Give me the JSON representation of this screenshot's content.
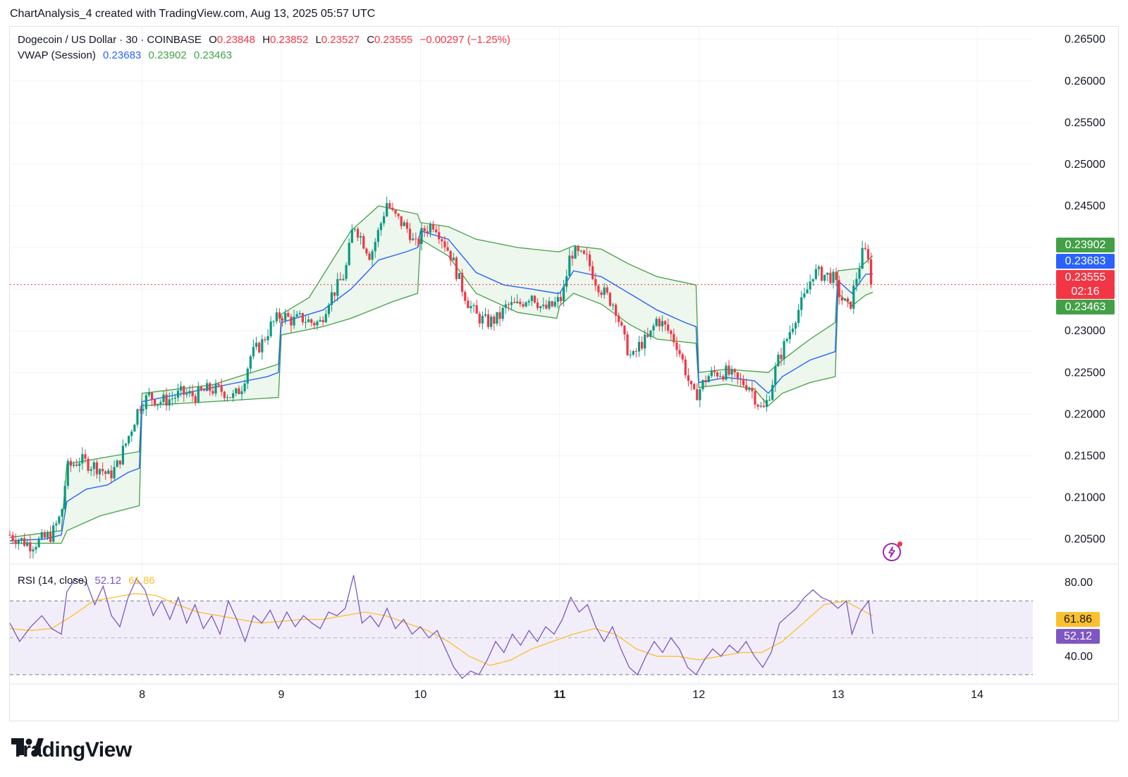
{
  "header": {
    "attribution": "ChartAnalysis_4 created with TradingView.com, Aug 13, 2025 05:57 UTC"
  },
  "legend": {
    "symbol": "Dogecoin / US Dollar · 30 · COINBASE",
    "o_label": "O",
    "o_value": "0.23848",
    "h_label": "H",
    "h_value": "0.23852",
    "l_label": "L",
    "l_value": "0.23527",
    "c_label": "C",
    "c_value": "0.23555",
    "change": "−0.00297 (−1.25%)",
    "vwap_label": "VWAP (Session)",
    "vwap_value": "0.23683",
    "vwap_upper": "0.23902",
    "vwap_lower": "0.23463"
  },
  "rsi_legend": {
    "label": "RSI (14, close)",
    "rsi_value": "52.12",
    "ma_value": "61.86"
  },
  "price_tags": {
    "upper": "0.23902",
    "vwap": "0.23683",
    "last": "0.23555",
    "countdown": "02:16",
    "lower": "0.23463"
  },
  "rsi_tags": {
    "ma": "61.86",
    "rsi": "52.12"
  },
  "branding": {
    "logo_text": "TradingView"
  },
  "colors": {
    "up": "#089981",
    "down": "#f23645",
    "vwap": "#2962ff",
    "band": "#43a047",
    "band_fill": "#e8f5e9",
    "rsi": "#7e57c2",
    "rsi_ma": "#fbc02d",
    "rsi_zone": "#ede7f6",
    "last_price": "#f23645"
  },
  "chart_data": {
    "type": "candlestick",
    "price_axis": {
      "ylim": [
        0.202,
        0.2665
      ],
      "ticks": [
        "0.26500",
        "0.26000",
        "0.25500",
        "0.25000",
        "0.24500",
        "0.24000",
        "0.23500",
        "0.23000",
        "0.22500",
        "0.22000",
        "0.21500",
        "0.21000",
        "0.20500"
      ],
      "tick_values": [
        0.265,
        0.26,
        0.255,
        0.25,
        0.245,
        0.24,
        0.235,
        0.23,
        0.225,
        0.22,
        0.215,
        0.21,
        0.205
      ]
    },
    "time_axis": {
      "xlim": [
        7.05,
        14.4
      ],
      "ticks": [
        "8",
        "9",
        "10",
        "11",
        "12",
        "13",
        "14"
      ],
      "tick_values": [
        8,
        9,
        10,
        11,
        12,
        13,
        14
      ],
      "bold_tick": "11"
    },
    "last_price": 0.23555,
    "price_path": [
      [
        7.05,
        0.2055
      ],
      [
        7.2,
        0.2043
      ],
      [
        7.35,
        0.2055
      ],
      [
        7.42,
        0.208
      ],
      [
        7.46,
        0.2135
      ],
      [
        7.55,
        0.2145
      ],
      [
        7.62,
        0.214
      ],
      [
        7.7,
        0.2135
      ],
      [
        7.76,
        0.2125
      ],
      [
        7.82,
        0.2138
      ],
      [
        7.9,
        0.2172
      ],
      [
        7.98,
        0.221
      ],
      [
        8.05,
        0.2222
      ],
      [
        8.12,
        0.2215
      ],
      [
        8.2,
        0.2218
      ],
      [
        8.28,
        0.2225
      ],
      [
        8.38,
        0.2222
      ],
      [
        8.48,
        0.223
      ],
      [
        8.58,
        0.2228
      ],
      [
        8.66,
        0.222
      ],
      [
        8.72,
        0.2235
      ],
      [
        8.78,
        0.227
      ],
      [
        8.86,
        0.2285
      ],
      [
        8.92,
        0.2305
      ],
      [
        9.0,
        0.232
      ],
      [
        9.08,
        0.2312
      ],
      [
        9.15,
        0.2315
      ],
      [
        9.22,
        0.231
      ],
      [
        9.28,
        0.231
      ],
      [
        9.34,
        0.2338
      ],
      [
        9.4,
        0.2352
      ],
      [
        9.46,
        0.237
      ],
      [
        9.52,
        0.243
      ],
      [
        9.58,
        0.241
      ],
      [
        9.64,
        0.239
      ],
      [
        9.7,
        0.242
      ],
      [
        9.76,
        0.2455
      ],
      [
        9.8,
        0.244
      ],
      [
        9.86,
        0.243
      ],
      [
        9.92,
        0.242
      ],
      [
        9.96,
        0.24
      ],
      [
        10.02,
        0.242
      ],
      [
        10.1,
        0.243
      ],
      [
        10.16,
        0.241
      ],
      [
        10.22,
        0.239
      ],
      [
        10.28,
        0.236
      ],
      [
        10.34,
        0.2335
      ],
      [
        10.4,
        0.2318
      ],
      [
        10.48,
        0.231
      ],
      [
        10.56,
        0.2315
      ],
      [
        10.62,
        0.233
      ],
      [
        10.7,
        0.233
      ],
      [
        10.8,
        0.2345
      ],
      [
        10.88,
        0.2325
      ],
      [
        10.95,
        0.233
      ],
      [
        11.02,
        0.234
      ],
      [
        11.08,
        0.2395
      ],
      [
        11.14,
        0.239
      ],
      [
        11.2,
        0.2385
      ],
      [
        11.26,
        0.236
      ],
      [
        11.32,
        0.2345
      ],
      [
        11.4,
        0.233
      ],
      [
        11.46,
        0.229
      ],
      [
        11.52,
        0.2265
      ],
      [
        11.58,
        0.2285
      ],
      [
        11.64,
        0.229
      ],
      [
        11.7,
        0.2315
      ],
      [
        11.78,
        0.23
      ],
      [
        11.84,
        0.2285
      ],
      [
        11.9,
        0.2255
      ],
      [
        11.96,
        0.222
      ],
      [
        12.0,
        0.2228
      ],
      [
        12.06,
        0.2245
      ],
      [
        12.12,
        0.225
      ],
      [
        12.2,
        0.225
      ],
      [
        12.28,
        0.224
      ],
      [
        12.36,
        0.2235
      ],
      [
        12.42,
        0.2215
      ],
      [
        12.46,
        0.2203
      ],
      [
        12.5,
        0.222
      ],
      [
        12.56,
        0.226
      ],
      [
        12.62,
        0.2285
      ],
      [
        12.7,
        0.232
      ],
      [
        12.76,
        0.234
      ],
      [
        12.82,
        0.237
      ],
      [
        12.88,
        0.2368
      ],
      [
        12.96,
        0.2365
      ],
      [
        13.02,
        0.234
      ],
      [
        13.08,
        0.2325
      ],
      [
        13.14,
        0.237
      ],
      [
        13.18,
        0.2395
      ],
      [
        13.22,
        0.2392
      ],
      [
        13.25,
        0.23555
      ]
    ],
    "vwap_path": [
      [
        7.05,
        0.2048
      ],
      [
        7.3,
        0.205
      ],
      [
        7.42,
        0.2055
      ],
      [
        7.46,
        0.2095
      ],
      [
        7.6,
        0.211
      ],
      [
        7.75,
        0.2115
      ],
      [
        7.9,
        0.213
      ],
      [
        7.98,
        0.2135
      ],
      [
        8.0,
        0.2215
      ],
      [
        8.3,
        0.2225
      ],
      [
        8.6,
        0.2235
      ],
      [
        8.9,
        0.2245
      ],
      [
        8.98,
        0.225
      ],
      [
        9.0,
        0.231
      ],
      [
        9.3,
        0.2325
      ],
      [
        9.5,
        0.235
      ],
      [
        9.7,
        0.2385
      ],
      [
        9.9,
        0.2395
      ],
      [
        9.98,
        0.24
      ],
      [
        10.0,
        0.242
      ],
      [
        10.2,
        0.241
      ],
      [
        10.4,
        0.237
      ],
      [
        10.6,
        0.2355
      ],
      [
        10.8,
        0.235
      ],
      [
        10.98,
        0.2345
      ],
      [
        11.0,
        0.2345
      ],
      [
        11.1,
        0.2372
      ],
      [
        11.3,
        0.2365
      ],
      [
        11.5,
        0.2345
      ],
      [
        11.7,
        0.2325
      ],
      [
        11.9,
        0.231
      ],
      [
        11.98,
        0.2305
      ],
      [
        12.0,
        0.2238
      ],
      [
        12.2,
        0.2244
      ],
      [
        12.4,
        0.224
      ],
      [
        12.5,
        0.2225
      ],
      [
        12.6,
        0.2245
      ],
      [
        12.8,
        0.2265
      ],
      [
        12.98,
        0.2275
      ],
      [
        13.0,
        0.236
      ],
      [
        13.1,
        0.2345
      ],
      [
        13.2,
        0.2368
      ],
      [
        13.25,
        0.23683
      ]
    ],
    "upper_band_path": [
      [
        7.05,
        0.2052
      ],
      [
        7.42,
        0.206
      ],
      [
        7.46,
        0.214
      ],
      [
        7.8,
        0.215
      ],
      [
        7.98,
        0.2155
      ],
      [
        8.0,
        0.2225
      ],
      [
        8.5,
        0.2235
      ],
      [
        8.98,
        0.226
      ],
      [
        9.0,
        0.232
      ],
      [
        9.2,
        0.234
      ],
      [
        9.5,
        0.242
      ],
      [
        9.7,
        0.245
      ],
      [
        9.98,
        0.244
      ],
      [
        10.0,
        0.243
      ],
      [
        10.2,
        0.2425
      ],
      [
        10.4,
        0.241
      ],
      [
        10.7,
        0.24
      ],
      [
        10.98,
        0.2395
      ],
      [
        11.0,
        0.2395
      ],
      [
        11.1,
        0.2402
      ],
      [
        11.3,
        0.2398
      ],
      [
        11.5,
        0.238
      ],
      [
        11.7,
        0.2365
      ],
      [
        11.98,
        0.2355
      ],
      [
        12.0,
        0.225
      ],
      [
        12.2,
        0.2254
      ],
      [
        12.5,
        0.225
      ],
      [
        12.6,
        0.2265
      ],
      [
        12.8,
        0.229
      ],
      [
        12.98,
        0.231
      ],
      [
        13.0,
        0.2372
      ],
      [
        13.15,
        0.2375
      ],
      [
        13.25,
        0.23902
      ]
    ],
    "lower_band_path": [
      [
        7.05,
        0.2045
      ],
      [
        7.42,
        0.2045
      ],
      [
        7.46,
        0.206
      ],
      [
        7.7,
        0.2078
      ],
      [
        7.98,
        0.209
      ],
      [
        8.0,
        0.221
      ],
      [
        8.5,
        0.2215
      ],
      [
        8.98,
        0.222
      ],
      [
        9.0,
        0.2295
      ],
      [
        9.3,
        0.2305
      ],
      [
        9.5,
        0.2315
      ],
      [
        9.8,
        0.2335
      ],
      [
        9.98,
        0.2345
      ],
      [
        10.0,
        0.241
      ],
      [
        10.2,
        0.239
      ],
      [
        10.4,
        0.2345
      ],
      [
        10.7,
        0.2322
      ],
      [
        10.98,
        0.2315
      ],
      [
        11.0,
        0.233
      ],
      [
        11.1,
        0.2345
      ],
      [
        11.3,
        0.2332
      ],
      [
        11.5,
        0.2308
      ],
      [
        11.7,
        0.229
      ],
      [
        11.98,
        0.2285
      ],
      [
        12.0,
        0.2232
      ],
      [
        12.2,
        0.2236
      ],
      [
        12.4,
        0.223
      ],
      [
        12.5,
        0.221
      ],
      [
        12.6,
        0.2225
      ],
      [
        12.8,
        0.2238
      ],
      [
        12.98,
        0.2245
      ],
      [
        13.0,
        0.2345
      ],
      [
        13.1,
        0.233
      ],
      [
        13.2,
        0.2343
      ],
      [
        13.25,
        0.23463
      ]
    ],
    "rsi": {
      "ylim": [
        25,
        90
      ],
      "ticks": [
        "80.00",
        "40.00"
      ],
      "tick_values": [
        80,
        40
      ],
      "overbought": 70,
      "oversold": 30,
      "midline": 50,
      "rsi_path": [
        [
          7.05,
          58
        ],
        [
          7.12,
          48
        ],
        [
          7.2,
          56
        ],
        [
          7.28,
          62
        ],
        [
          7.35,
          55
        ],
        [
          7.42,
          52
        ],
        [
          7.46,
          75
        ],
        [
          7.52,
          82
        ],
        [
          7.6,
          80
        ],
        [
          7.66,
          68
        ],
        [
          7.72,
          78
        ],
        [
          7.78,
          62
        ],
        [
          7.84,
          56
        ],
        [
          7.9,
          72
        ],
        [
          7.96,
          82
        ],
        [
          8.02,
          76
        ],
        [
          8.08,
          62
        ],
        [
          8.14,
          70
        ],
        [
          8.2,
          60
        ],
        [
          8.26,
          72
        ],
        [
          8.32,
          58
        ],
        [
          8.38,
          68
        ],
        [
          8.44,
          55
        ],
        [
          8.5,
          62
        ],
        [
          8.56,
          52
        ],
        [
          8.62,
          70
        ],
        [
          8.68,
          60
        ],
        [
          8.74,
          48
        ],
        [
          8.8,
          62
        ],
        [
          8.86,
          58
        ],
        [
          8.92,
          65
        ],
        [
          8.98,
          55
        ],
        [
          9.04,
          64
        ],
        [
          9.1,
          56
        ],
        [
          9.16,
          62
        ],
        [
          9.22,
          58
        ],
        [
          9.28,
          55
        ],
        [
          9.34,
          64
        ],
        [
          9.4,
          62
        ],
        [
          9.46,
          66
        ],
        [
          9.52,
          84
        ],
        [
          9.58,
          58
        ],
        [
          9.64,
          62
        ],
        [
          9.7,
          56
        ],
        [
          9.76,
          66
        ],
        [
          9.82,
          55
        ],
        [
          9.88,
          60
        ],
        [
          9.94,
          52
        ],
        [
          10.0,
          56
        ],
        [
          10.06,
          50
        ],
        [
          10.12,
          54
        ],
        [
          10.18,
          44
        ],
        [
          10.24,
          34
        ],
        [
          10.3,
          28
        ],
        [
          10.36,
          32
        ],
        [
          10.42,
          30
        ],
        [
          10.48,
          38
        ],
        [
          10.54,
          48
        ],
        [
          10.6,
          42
        ],
        [
          10.66,
          52
        ],
        [
          10.72,
          46
        ],
        [
          10.78,
          54
        ],
        [
          10.84,
          48
        ],
        [
          10.9,
          56
        ],
        [
          10.96,
          52
        ],
        [
          11.02,
          60
        ],
        [
          11.08,
          72
        ],
        [
          11.14,
          64
        ],
        [
          11.2,
          68
        ],
        [
          11.26,
          56
        ],
        [
          11.32,
          48
        ],
        [
          11.38,
          56
        ],
        [
          11.44,
          44
        ],
        [
          11.5,
          34
        ],
        [
          11.56,
          30
        ],
        [
          11.62,
          40
        ],
        [
          11.68,
          48
        ],
        [
          11.74,
          42
        ],
        [
          11.8,
          50
        ],
        [
          11.86,
          44
        ],
        [
          11.92,
          34
        ],
        [
          11.98,
          30
        ],
        [
          12.04,
          38
        ],
        [
          12.1,
          44
        ],
        [
          12.16,
          40
        ],
        [
          12.22,
          46
        ],
        [
          12.28,
          42
        ],
        [
          12.34,
          48
        ],
        [
          12.4,
          40
        ],
        [
          12.46,
          34
        ],
        [
          12.52,
          42
        ],
        [
          12.58,
          58
        ],
        [
          12.64,
          62
        ],
        [
          12.7,
          66
        ],
        [
          12.76,
          72
        ],
        [
          12.82,
          76
        ],
        [
          12.88,
          72
        ],
        [
          12.94,
          70
        ],
        [
          13.0,
          66
        ],
        [
          13.06,
          70
        ],
        [
          13.1,
          52
        ],
        [
          13.16,
          64
        ],
        [
          13.22,
          70
        ],
        [
          13.25,
          52.12
        ]
      ],
      "ma_path": [
        [
          7.05,
          55
        ],
        [
          7.2,
          54
        ],
        [
          7.35,
          55
        ],
        [
          7.5,
          62
        ],
        [
          7.65,
          70
        ],
        [
          7.8,
          72
        ],
        [
          7.95,
          74
        ],
        [
          8.1,
          73
        ],
        [
          8.25,
          68
        ],
        [
          8.4,
          64
        ],
        [
          8.55,
          62
        ],
        [
          8.7,
          60
        ],
        [
          8.85,
          58
        ],
        [
          9.0,
          59
        ],
        [
          9.15,
          60
        ],
        [
          9.3,
          60
        ],
        [
          9.45,
          62
        ],
        [
          9.6,
          64
        ],
        [
          9.75,
          62
        ],
        [
          9.9,
          58
        ],
        [
          10.05,
          54
        ],
        [
          10.2,
          48
        ],
        [
          10.35,
          40
        ],
        [
          10.5,
          35
        ],
        [
          10.65,
          38
        ],
        [
          10.8,
          44
        ],
        [
          10.95,
          48
        ],
        [
          11.1,
          52
        ],
        [
          11.25,
          55
        ],
        [
          11.4,
          52
        ],
        [
          11.55,
          44
        ],
        [
          11.7,
          40
        ],
        [
          11.85,
          40
        ],
        [
          12.0,
          38
        ],
        [
          12.15,
          40
        ],
        [
          12.3,
          42
        ],
        [
          12.45,
          42
        ],
        [
          12.6,
          48
        ],
        [
          12.75,
          58
        ],
        [
          12.9,
          68
        ],
        [
          13.05,
          70
        ],
        [
          13.15,
          66
        ],
        [
          13.25,
          61.86
        ]
      ]
    }
  }
}
